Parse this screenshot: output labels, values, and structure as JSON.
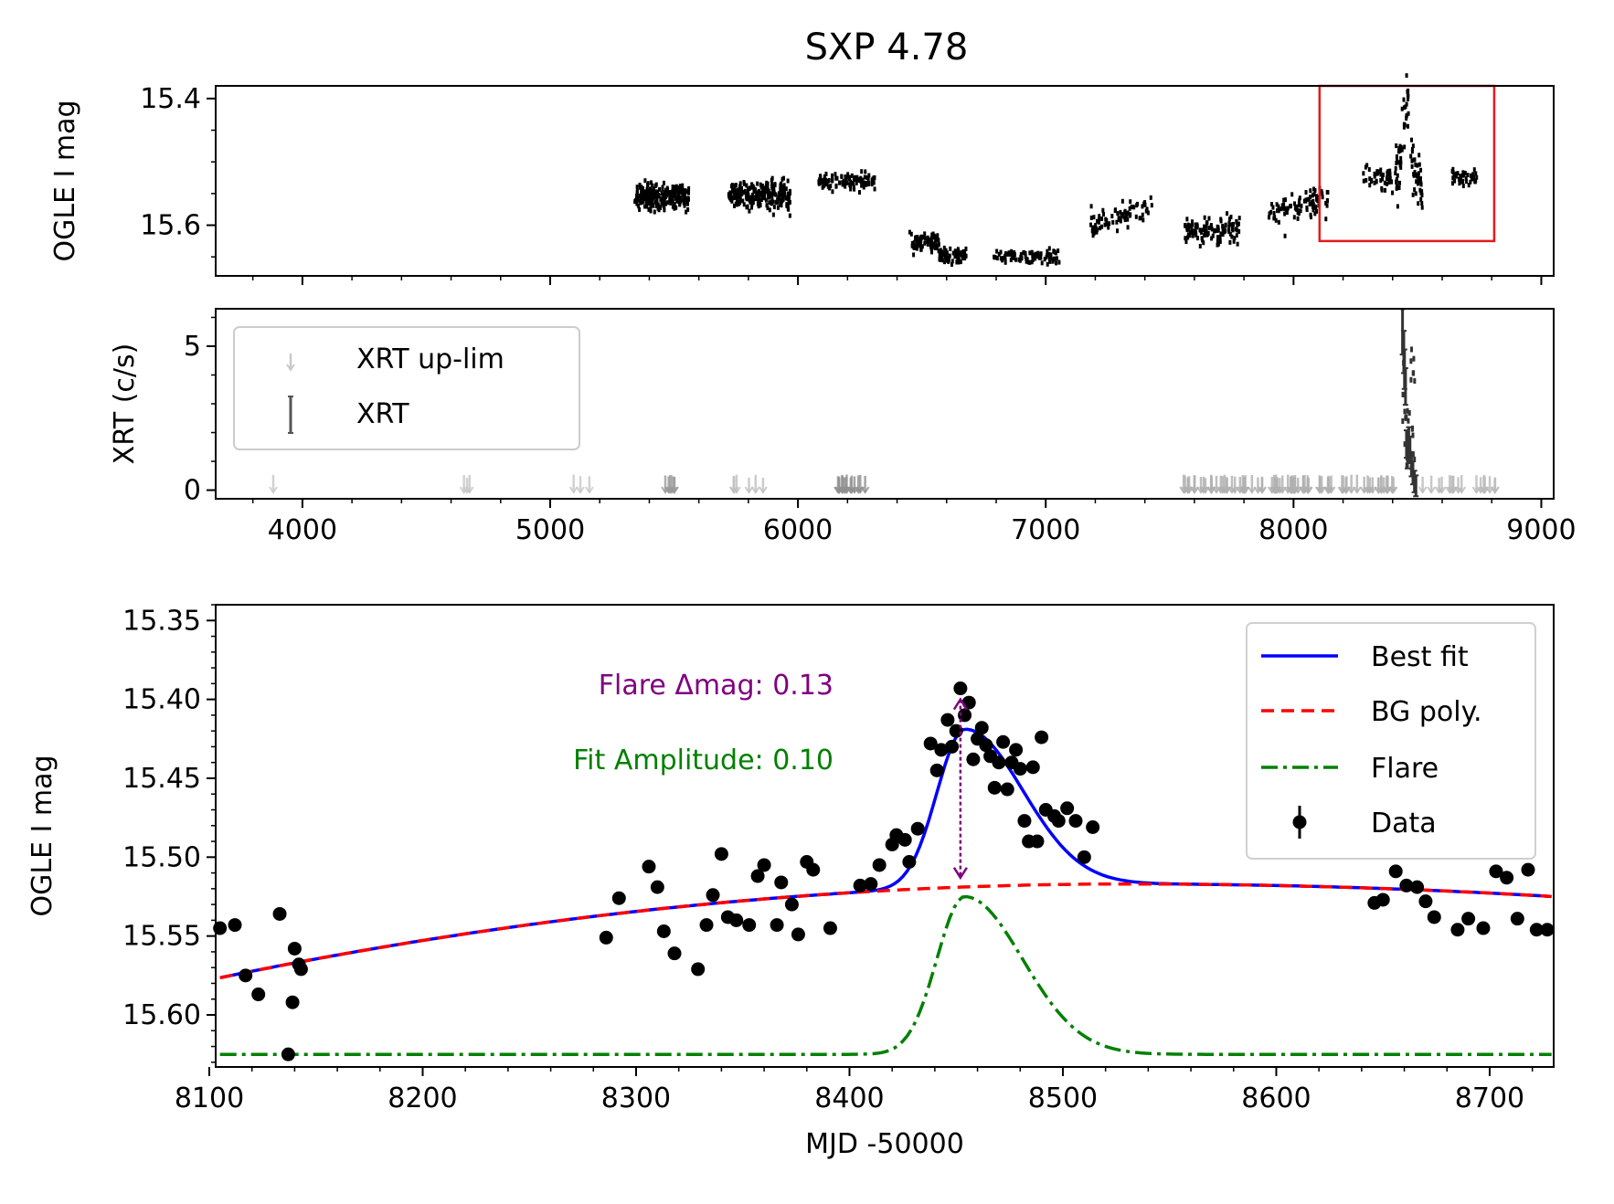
{
  "figure_title": "SXP 4.78",
  "chart_data": [
    {
      "panel": "top",
      "type": "scatter",
      "ylabel": "OGLE I mag",
      "xlim": [
        3650,
        9050
      ],
      "ylim": [
        15.68,
        15.38
      ],
      "yinverted": true,
      "yticks": [
        15.4,
        15.6
      ],
      "ytick_labels": [
        "15.4",
        "15.6"
      ],
      "series": [
        {
          "color": "#000000",
          "segments": [
            {
              "x": [
                5340,
                5560
              ],
              "y_center": 15.555,
              "spread": 0.018,
              "n": 260
            },
            {
              "x": [
                5720,
                5970
              ],
              "y_center": 15.552,
              "spread": 0.018,
              "n": 260
            },
            {
              "x": [
                6080,
                6310
              ],
              "y_center": 15.53,
              "spread": 0.012,
              "n": 110
            },
            {
              "x": [
                6450,
                6570
              ],
              "y_center": 15.627,
              "spread": 0.012,
              "n": 80
            },
            {
              "x": [
                6570,
                6680
              ],
              "y_center": 15.648,
              "spread": 0.01,
              "n": 60
            },
            {
              "x": [
                6790,
                7060
              ],
              "y_center": 15.65,
              "spread": 0.01,
              "n": 90
            },
            {
              "x": [
                7180,
                7430
              ],
              "y_center": 15.585,
              "spread": 0.015,
              "n": 80
            },
            {
              "x": [
                7560,
                7790
              ],
              "y_center": 15.607,
              "spread": 0.016,
              "n": 120
            },
            {
              "x": [
                7900,
                8140
              ],
              "y_center": 15.57,
              "spread": 0.018,
              "n": 90
            },
            {
              "x": [
                8280,
                8400
              ],
              "y_center": 15.525,
              "spread": 0.018,
              "n": 45
            },
            {
              "x": [
                8410,
                8520
              ],
              "y_center": 15.445,
              "spread": 0.04,
              "n": 90
            },
            {
              "x": [
                8640,
                8740
              ],
              "y_center": 15.525,
              "spread": 0.012,
              "n": 40
            }
          ]
        }
      ],
      "annotation_box": {
        "color": "#e41a1c",
        "x_range": [
          8105,
          8810
        ],
        "y_range": [
          15.38,
          15.625
        ]
      }
    },
    {
      "panel": "middle",
      "type": "scatter",
      "ylabel": "XRT (c/s)",
      "xlim": [
        3650,
        9050
      ],
      "ylim": [
        -0.3,
        6.3
      ],
      "yticks": [
        0,
        5
      ],
      "ytick_labels": [
        "0",
        "5"
      ],
      "xticks": [
        4000,
        5000,
        6000,
        7000,
        8000,
        9000
      ],
      "xtick_labels": [
        "4000",
        "5000",
        "6000",
        "7000",
        "8000",
        "9000"
      ],
      "legend": {
        "location": "upper-left",
        "entries": [
          "XRT up-lim",
          "XRT"
        ]
      },
      "uplim_clusters": [
        {
          "x": [
            3880,
            3890
          ],
          "n": 1,
          "color": "#c8c8c8"
        },
        {
          "x": [
            4650,
            4690
          ],
          "n": 3,
          "color": "#c8c8c8"
        },
        {
          "x": [
            5090,
            5160
          ],
          "n": 3,
          "color": "#c8c8c8"
        },
        {
          "x": [
            5460,
            5510
          ],
          "n": 6,
          "color": "#9a9a9a"
        },
        {
          "x": [
            5720,
            5900
          ],
          "n": 6,
          "color": "#c0c0c0"
        },
        {
          "x": [
            6140,
            6290
          ],
          "n": 14,
          "color": "#909090"
        },
        {
          "x": [
            7550,
            8420
          ],
          "n": 80,
          "color": "#b0b0b0"
        },
        {
          "x": [
            8520,
            8820
          ],
          "n": 18,
          "color": "#bbbbbb"
        }
      ],
      "detections": {
        "color": "#333333",
        "x": [
          8440,
          8445,
          8448,
          8452,
          8456,
          8460,
          8465,
          8470,
          8476,
          8482,
          8488,
          8494
        ],
        "y": [
          5.5,
          4.8,
          4.2,
          3.6,
          1.6,
          1.2,
          1.7,
          1.4,
          0.9,
          0.6,
          0.3,
          0.15
        ]
      }
    },
    {
      "panel": "bottom",
      "type": "scatter",
      "xlabel": "MJD -50000",
      "ylabel": "OGLE I mag",
      "xlim": [
        8103,
        8730
      ],
      "ylim": [
        15.633,
        15.34
      ],
      "yinverted": true,
      "yticks": [
        15.35,
        15.4,
        15.45,
        15.5,
        15.55,
        15.6
      ],
      "ytick_labels": [
        "15.35",
        "15.40",
        "15.45",
        "15.50",
        "15.55",
        "15.60"
      ],
      "xticks": [
        8100,
        8200,
        8300,
        8400,
        8500,
        8600,
        8700
      ],
      "xtick_labels": [
        "8100",
        "8200",
        "8300",
        "8400",
        "8500",
        "8600",
        "8700"
      ],
      "legend": {
        "location": "upper-right",
        "entries": [
          "Best fit",
          "BG poly.",
          "Flare",
          "Data"
        ]
      },
      "model": {
        "bg_poly": {
          "x0": 8103,
          "y0": 15.577,
          "peak_x": 8530,
          "peak_y": 15.517,
          "end_x": 8730,
          "end_y": 15.525
        },
        "flare": {
          "center": 8454,
          "sigma_left": 13,
          "sigma_right": 27,
          "amplitude": 0.1
        },
        "flare_offset_curve": {
          "baseline": 15.625,
          "peak": 15.525
        }
      },
      "data": {
        "x": [
          8105,
          8112,
          8117,
          8123,
          8133,
          8137,
          8139,
          8140,
          8142,
          8143,
          8286,
          8292,
          8306,
          8310,
          8313,
          8318,
          8329,
          8333,
          8336,
          8340,
          8343,
          8347,
          8353,
          8357,
          8360,
          8366,
          8368,
          8373,
          8376,
          8380,
          8383,
          8391,
          8405,
          8410,
          8414,
          8420,
          8422,
          8426,
          8428,
          8432,
          8438,
          8441,
          8443,
          8446,
          8448,
          8450,
          8452,
          8454,
          8456,
          8458,
          8460,
          8462,
          8464,
          8466,
          8468,
          8470,
          8472,
          8474,
          8476,
          8478,
          8480,
          8482,
          8484,
          8486,
          8488,
          8490,
          8492,
          8496,
          8498,
          8502,
          8506,
          8510,
          8514,
          8646,
          8650,
          8656,
          8661,
          8666,
          8670,
          8674,
          8685,
          8690,
          8697,
          8703,
          8708,
          8713,
          8718,
          8722,
          8727
        ],
        "y": [
          15.545,
          15.543,
          15.575,
          15.587,
          15.536,
          15.625,
          15.592,
          15.558,
          15.568,
          15.571,
          15.551,
          15.526,
          15.506,
          15.519,
          15.547,
          15.561,
          15.571,
          15.543,
          15.524,
          15.498,
          15.538,
          15.54,
          15.543,
          15.512,
          15.505,
          15.543,
          15.516,
          15.53,
          15.549,
          15.503,
          15.508,
          15.545,
          15.518,
          15.517,
          15.505,
          15.492,
          15.486,
          15.489,
          15.503,
          15.482,
          15.428,
          15.445,
          15.432,
          15.413,
          15.43,
          15.42,
          15.393,
          15.41,
          15.402,
          15.438,
          15.425,
          15.418,
          15.429,
          15.436,
          15.456,
          15.44,
          15.427,
          15.457,
          15.44,
          15.432,
          15.444,
          15.477,
          15.49,
          15.443,
          15.49,
          15.424,
          15.47,
          15.474,
          15.477,
          15.469,
          15.477,
          15.5,
          15.481,
          15.529,
          15.527,
          15.509,
          15.518,
          15.519,
          15.528,
          15.538,
          15.546,
          15.539,
          15.545,
          15.509,
          15.513,
          15.539,
          15.508,
          15.546,
          15.546
        ]
      },
      "annotations": [
        {
          "text": "Flare Δmag: 0.13",
          "color": "#800080"
        },
        {
          "text": "Fit Amplitude: 0.10",
          "color": "#008000"
        }
      ],
      "arrow": {
        "x": 8452,
        "y_from": 15.4,
        "y_to": 15.513,
        "color": "#800080"
      }
    }
  ],
  "colors": {
    "best_fit": "#0000ff",
    "bg_poly": "#ff0000",
    "flare": "#008000",
    "data": "#000000",
    "box": "#e41a1c",
    "annotation_purple": "#800080",
    "annotation_green": "#008000"
  },
  "icons": {
    "uplim": "downward-arrow-marker",
    "xrt": "errorbar-marker",
    "data": "point-errorbar-marker"
  }
}
